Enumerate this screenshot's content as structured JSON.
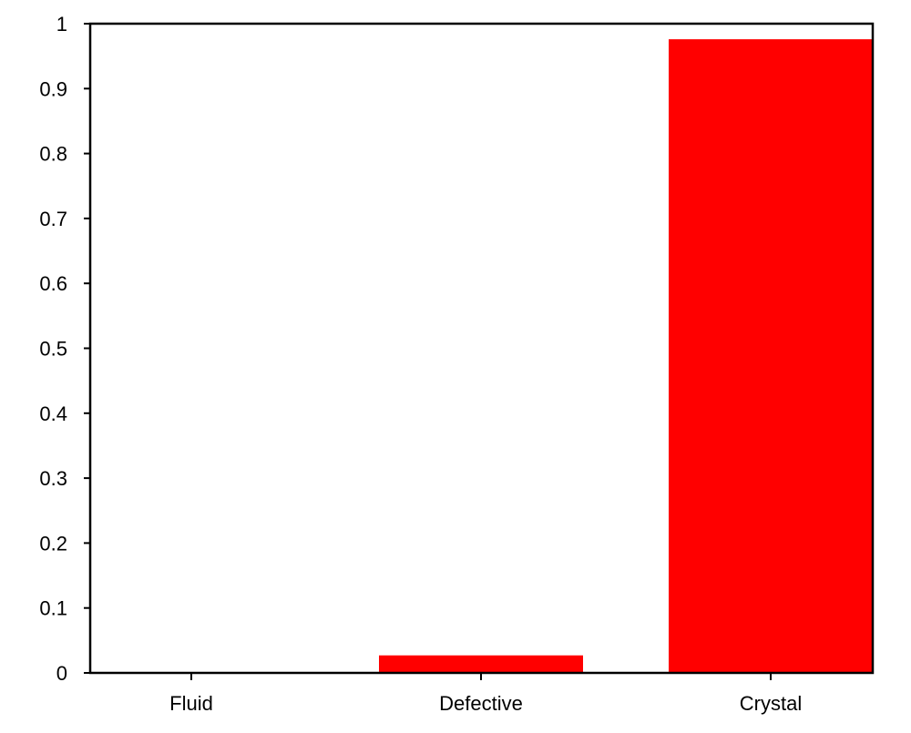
{
  "chart_data": {
    "type": "bar",
    "categories": [
      "Fluid",
      "Defective",
      "Crystal"
    ],
    "values": [
      0.0,
      0.027,
      0.976
    ],
    "ylim": [
      0,
      1
    ],
    "yticks": [
      0,
      0.1,
      0.2,
      0.3,
      0.4,
      0.5,
      0.6,
      0.7,
      0.8,
      0.9,
      1
    ],
    "ytick_labels": [
      "0",
      "0.1",
      "0.2",
      "0.3",
      "0.4",
      "0.5",
      "0.6",
      "0.7",
      "0.8",
      "0.9",
      "1"
    ],
    "grid": false,
    "legend": "none",
    "bar_color": "#ff0000",
    "axis_color": "#000000"
  }
}
